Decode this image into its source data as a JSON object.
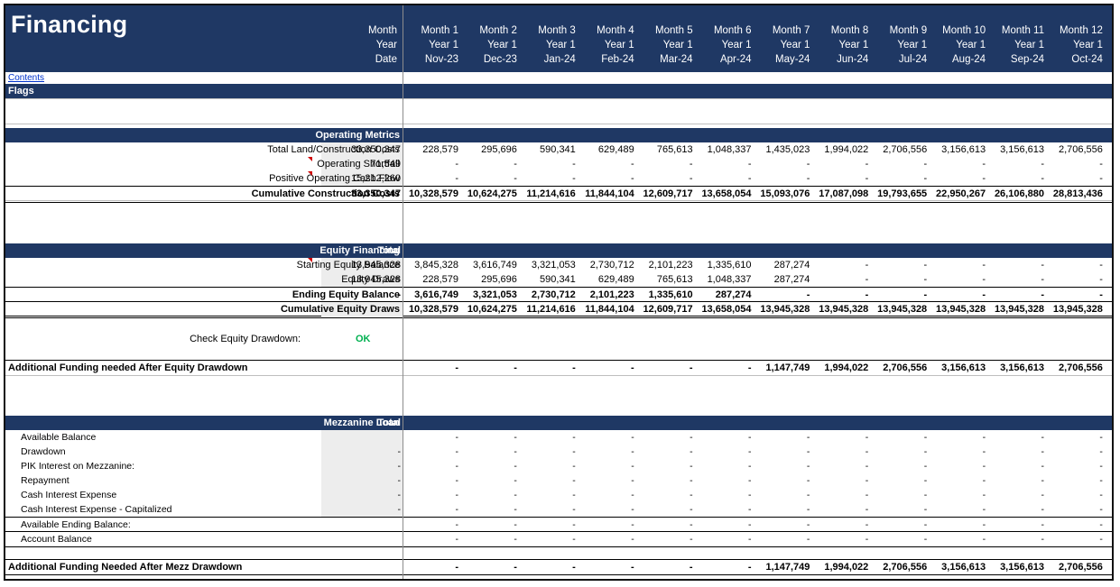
{
  "title": "Financing",
  "header": {
    "first_col": [
      "Month",
      "Year",
      "Date"
    ],
    "months": [
      {
        "month": "Month 1",
        "year": "Year 1",
        "date": "Nov-23"
      },
      {
        "month": "Month 2",
        "year": "Year 1",
        "date": "Dec-23"
      },
      {
        "month": "Month 3",
        "year": "Year 1",
        "date": "Jan-24"
      },
      {
        "month": "Month 4",
        "year": "Year 1",
        "date": "Feb-24"
      },
      {
        "month": "Month 5",
        "year": "Year 1",
        "date": "Mar-24"
      },
      {
        "month": "Month 6",
        "year": "Year 1",
        "date": "Apr-24"
      },
      {
        "month": "Month 7",
        "year": "Year 1",
        "date": "May-24"
      },
      {
        "month": "Month 8",
        "year": "Year 1",
        "date": "Jun-24"
      },
      {
        "month": "Month 9",
        "year": "Year 1",
        "date": "Jul-24"
      },
      {
        "month": "Month 10",
        "year": "Year 1",
        "date": "Aug-24"
      },
      {
        "month": "Month 11",
        "year": "Year 1",
        "date": "Sep-24"
      },
      {
        "month": "Month 12",
        "year": "Year 1",
        "date": "Oct-24"
      }
    ]
  },
  "contents_link": "Contents",
  "flags_label": "Flags",
  "operating": {
    "title": "Operating Metrics",
    "rows": [
      {
        "label": "Total Land/Construction Costs",
        "total": "33,350,347",
        "values": [
          "228,579",
          "295,696",
          "590,341",
          "629,489",
          "765,613",
          "1,048,337",
          "1,435,023",
          "1,994,022",
          "2,706,556",
          "3,156,613",
          "3,156,613",
          "2,706,556"
        ]
      },
      {
        "label": "Operating Shortfall",
        "total": "71,549",
        "values": [
          "-",
          "-",
          "-",
          "-",
          "-",
          "-",
          "-",
          "-",
          "-",
          "-",
          "-",
          "-"
        ]
      },
      {
        "label": "Positive Operating Cash Flow",
        "total": "15,212,260",
        "values": [
          "-",
          "-",
          "-",
          "-",
          "-",
          "-",
          "-",
          "-",
          "-",
          "-",
          "-",
          "-"
        ]
      },
      {
        "label": "Cumulative Construction Costs",
        "total": "33,350,347",
        "values": [
          "10,328,579",
          "10,624,275",
          "11,214,616",
          "11,844,104",
          "12,609,717",
          "13,658,054",
          "15,093,076",
          "17,087,098",
          "19,793,655",
          "22,950,267",
          "26,106,880",
          "28,813,436"
        ]
      }
    ]
  },
  "equity": {
    "title": "Equity Financing",
    "total_header": "Total",
    "rows": [
      {
        "label": "Starting Equity Balance",
        "total": "13,945,328",
        "values": [
          "3,845,328",
          "3,616,749",
          "3,321,053",
          "2,730,712",
          "2,101,223",
          "1,335,610",
          "287,274",
          "-",
          "-",
          "-",
          "-",
          "-"
        ]
      },
      {
        "label": "Equity Draws",
        "total": "13,945,328",
        "values": [
          "228,579",
          "295,696",
          "590,341",
          "629,489",
          "765,613",
          "1,048,337",
          "287,274",
          "-",
          "-",
          "-",
          "-",
          "-"
        ]
      },
      {
        "label": "Ending Equity Balance",
        "total": "-",
        "values": [
          "3,616,749",
          "3,321,053",
          "2,730,712",
          "2,101,223",
          "1,335,610",
          "287,274",
          "-",
          "-",
          "-",
          "-",
          "-",
          "-"
        ]
      },
      {
        "label": "Cumulative Equity Draws",
        "total": "",
        "values": [
          "10,328,579",
          "10,624,275",
          "11,214,616",
          "11,844,104",
          "12,609,717",
          "13,658,054",
          "13,945,328",
          "13,945,328",
          "13,945,328",
          "13,945,328",
          "13,945,328",
          "13,945,328"
        ]
      }
    ],
    "check_label": "Check  Equity Drawdown:",
    "check_value": "OK"
  },
  "additional_equity": {
    "label": "Additional Funding needed After Equity Drawdown",
    "values": [
      "-",
      "-",
      "-",
      "-",
      "-",
      "-",
      "1,147,749",
      "1,994,022",
      "2,706,556",
      "3,156,613",
      "3,156,613",
      "2,706,556"
    ]
  },
  "mezz": {
    "title": "Mezzanine Loan",
    "total_header": "Total",
    "rows": [
      {
        "label": "Available Balance",
        "total": "",
        "values": [
          "-",
          "-",
          "-",
          "-",
          "-",
          "-",
          "-",
          "-",
          "-",
          "-",
          "-",
          "-"
        ]
      },
      {
        "label": "Drawdown",
        "total": "-",
        "values": [
          "-",
          "-",
          "-",
          "-",
          "-",
          "-",
          "-",
          "-",
          "-",
          "-",
          "-",
          "-"
        ]
      },
      {
        "label": "PIK Interest on Mezzanine:",
        "total": "-",
        "values": [
          "-",
          "-",
          "-",
          "-",
          "-",
          "-",
          "-",
          "-",
          "-",
          "-",
          "-",
          "-"
        ]
      },
      {
        "label": "Repayment",
        "total": "-",
        "values": [
          "-",
          "-",
          "-",
          "-",
          "-",
          "-",
          "-",
          "-",
          "-",
          "-",
          "-",
          "-"
        ]
      },
      {
        "label": "Cash Interest Expense",
        "total": "-",
        "values": [
          "-",
          "-",
          "-",
          "-",
          "-",
          "-",
          "-",
          "-",
          "-",
          "-",
          "-",
          "-"
        ]
      },
      {
        "label": "Cash Interest Expense - Capitalized",
        "total": "-",
        "values": [
          "-",
          "-",
          "-",
          "-",
          "-",
          "-",
          "-",
          "-",
          "-",
          "-",
          "-",
          "-"
        ]
      },
      {
        "label": "Available Ending Balance:",
        "total": "",
        "values": [
          "-",
          "-",
          "-",
          "-",
          "-",
          "-",
          "-",
          "-",
          "-",
          "-",
          "-",
          "-"
        ]
      },
      {
        "label": "Account Balance",
        "total": "",
        "values": [
          "-",
          "-",
          "-",
          "-",
          "-",
          "-",
          "-",
          "-",
          "-",
          "-",
          "-",
          "-"
        ]
      }
    ]
  },
  "additional_mezz": {
    "label": "Additional Funding Needed After Mezz Drawdown",
    "values": [
      "-",
      "-",
      "-",
      "-",
      "-",
      "-",
      "1,147,749",
      "1,994,022",
      "2,706,556",
      "3,156,613",
      "3,156,613",
      "2,706,556"
    ]
  }
}
